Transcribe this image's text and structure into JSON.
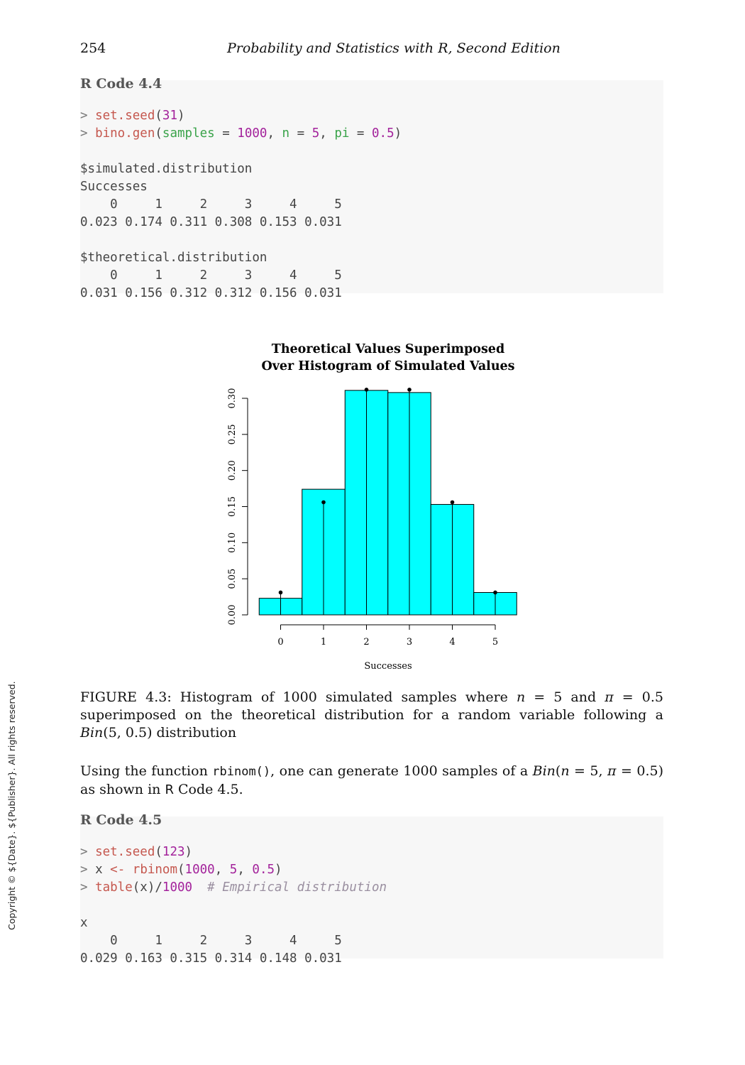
{
  "header": {
    "page_number": "254",
    "running_title": "Probability and Statistics with R, Second Edition"
  },
  "code_block_1": {
    "title": "R Code 4.4",
    "lines": [
      [
        {
          "t": "> ",
          "c": "op"
        },
        {
          "t": "set.seed",
          "c": "fn"
        },
        {
          "t": "(",
          "c": ""
        },
        {
          "t": "31",
          "c": "num"
        },
        {
          "t": ")",
          "c": ""
        }
      ],
      [
        {
          "t": "> ",
          "c": "op"
        },
        {
          "t": "bino.gen",
          "c": "fn"
        },
        {
          "t": "(",
          "c": ""
        },
        {
          "t": "samples",
          "c": "arg"
        },
        {
          "t": " = ",
          "c": ""
        },
        {
          "t": "1000",
          "c": "num"
        },
        {
          "t": ", ",
          "c": ""
        },
        {
          "t": "n",
          "c": "arg"
        },
        {
          "t": " = ",
          "c": ""
        },
        {
          "t": "5",
          "c": "num"
        },
        {
          "t": ", ",
          "c": ""
        },
        {
          "t": "pi",
          "c": "arg"
        },
        {
          "t": " = ",
          "c": ""
        },
        {
          "t": "0.5",
          "c": "num"
        },
        {
          "t": ")",
          "c": ""
        }
      ],
      [],
      [
        {
          "t": "$simulated.distribution",
          "c": ""
        }
      ],
      [
        {
          "t": "Successes",
          "c": ""
        }
      ],
      [
        {
          "t": "    0     1     2     3     4     5",
          "c": ""
        }
      ],
      [
        {
          "t": "0.023 0.174 0.311 0.308 0.153 0.031",
          "c": ""
        }
      ],
      [],
      [
        {
          "t": "$theoretical.distribution",
          "c": ""
        }
      ],
      [
        {
          "t": "    0     1     2     3     4     5",
          "c": ""
        }
      ],
      [
        {
          "t": "0.031 0.156 0.312 0.312 0.156 0.031",
          "c": ""
        }
      ]
    ]
  },
  "chart_data": {
    "type": "bar",
    "title": "Theoretical Values Superimposed\nOver Histogram of Simulated Values",
    "title_lines": [
      "Theoretical Values Superimposed",
      "Over Histogram of Simulated Values"
    ],
    "xlabel": "Successes",
    "ylabel": "",
    "categories": [
      "0",
      "1",
      "2",
      "3",
      "4",
      "5"
    ],
    "x_ticks": [
      "0",
      "1",
      "2",
      "3",
      "4",
      "5"
    ],
    "y_ticks": [
      "0.00",
      "0.05",
      "0.10",
      "0.15",
      "0.20",
      "0.25",
      "0.30"
    ],
    "ylim": [
      0,
      0.3
    ],
    "grid": false,
    "series": [
      {
        "values": [
          0.023,
          0.174,
          0.311,
          0.308,
          0.153,
          0.031
        ],
        "kind": "histogram",
        "color": "#00ffff"
      },
      {
        "values": [
          0.031,
          0.156,
          0.312,
          0.312,
          0.156,
          0.031
        ],
        "kind": "lollipop",
        "color": "#000000"
      }
    ]
  },
  "figure_caption": {
    "text": "FIGURE 4.3: Histogram of 1000 simulated samples where n = 5 and π = 0.5 superimposed on the theoretical distribution for a random variable following a Bin(5, 0.5) distribution"
  },
  "paragraph": {
    "before": "Using the function ",
    "code": "rbinom()",
    "middle": ", one can generate 1000 samples of a Bin(n = 5, π = 0.5) as shown in ",
    "ref_r": "R",
    "after": " Code 4.5."
  },
  "code_block_2": {
    "title": "R Code 4.5",
    "lines": [
      [
        {
          "t": "> ",
          "c": "op"
        },
        {
          "t": "set.seed",
          "c": "fn"
        },
        {
          "t": "(",
          "c": ""
        },
        {
          "t": "123",
          "c": "num"
        },
        {
          "t": ")",
          "c": ""
        }
      ],
      [
        {
          "t": "> ",
          "c": "op"
        },
        {
          "t": "x ",
          "c": ""
        },
        {
          "t": "<-",
          "c": "fn"
        },
        {
          "t": " ",
          "c": ""
        },
        {
          "t": "rbinom",
          "c": "fn"
        },
        {
          "t": "(",
          "c": ""
        },
        {
          "t": "1000",
          "c": "num"
        },
        {
          "t": ", ",
          "c": ""
        },
        {
          "t": "5",
          "c": "num"
        },
        {
          "t": ", ",
          "c": ""
        },
        {
          "t": "0.5",
          "c": "num"
        },
        {
          "t": ")",
          "c": ""
        }
      ],
      [
        {
          "t": "> ",
          "c": "op"
        },
        {
          "t": "table",
          "c": "fn"
        },
        {
          "t": "(x)/",
          "c": ""
        },
        {
          "t": "1000",
          "c": "num"
        },
        {
          "t": "  ",
          "c": ""
        },
        {
          "t": "# Empirical distribution",
          "c": "comment"
        }
      ],
      [],
      [
        {
          "t": "x",
          "c": ""
        }
      ],
      [
        {
          "t": "    0     1     2     3     4     5",
          "c": ""
        }
      ],
      [
        {
          "t": "0.029 0.163 0.315 0.314 0.148 0.031",
          "c": ""
        }
      ]
    ]
  },
  "sidebar_copyright": "Copyright © ${Date}. ${Publisher}. All rights reserved."
}
